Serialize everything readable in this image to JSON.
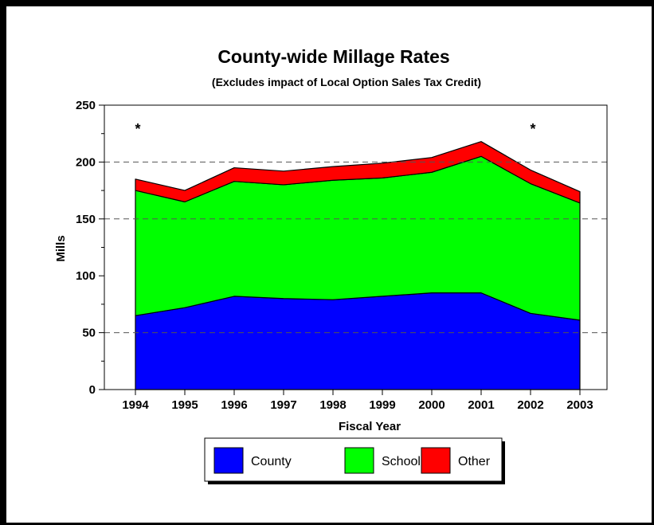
{
  "chart_data": {
    "type": "area",
    "stacked": true,
    "title": "County-wide Millage Rates",
    "subtitle": "(Excludes impact of Local Option Sales Tax Credit)",
    "xlabel": "Fiscal Year",
    "ylabel": "Mills",
    "ylim": [
      0,
      250
    ],
    "yticks": [
      0,
      50,
      100,
      150,
      200,
      250
    ],
    "grid": "dashed horizontal at 50, 150, 200",
    "legend_placement": "bottom-center",
    "categories": [
      "1994",
      "1995",
      "1996",
      "1997",
      "1998",
      "1999",
      "2000",
      "2001",
      "2002",
      "2003"
    ],
    "series": [
      {
        "name": "County",
        "color": "#0000ff",
        "values": [
          65,
          72,
          82,
          80,
          79,
          82,
          85,
          85,
          67,
          61
        ]
      },
      {
        "name": "School",
        "color": "#00ff00",
        "values": [
          110,
          93,
          101,
          100,
          105,
          104,
          106,
          120,
          114,
          103
        ]
      },
      {
        "name": "Other",
        "color": "#ff0000",
        "values": [
          10,
          10,
          12,
          12,
          12,
          13,
          13,
          13,
          12,
          10
        ]
      }
    ],
    "annotations": [
      {
        "text": "*",
        "x": "1994"
      },
      {
        "text": "*",
        "x": "2002"
      }
    ]
  }
}
